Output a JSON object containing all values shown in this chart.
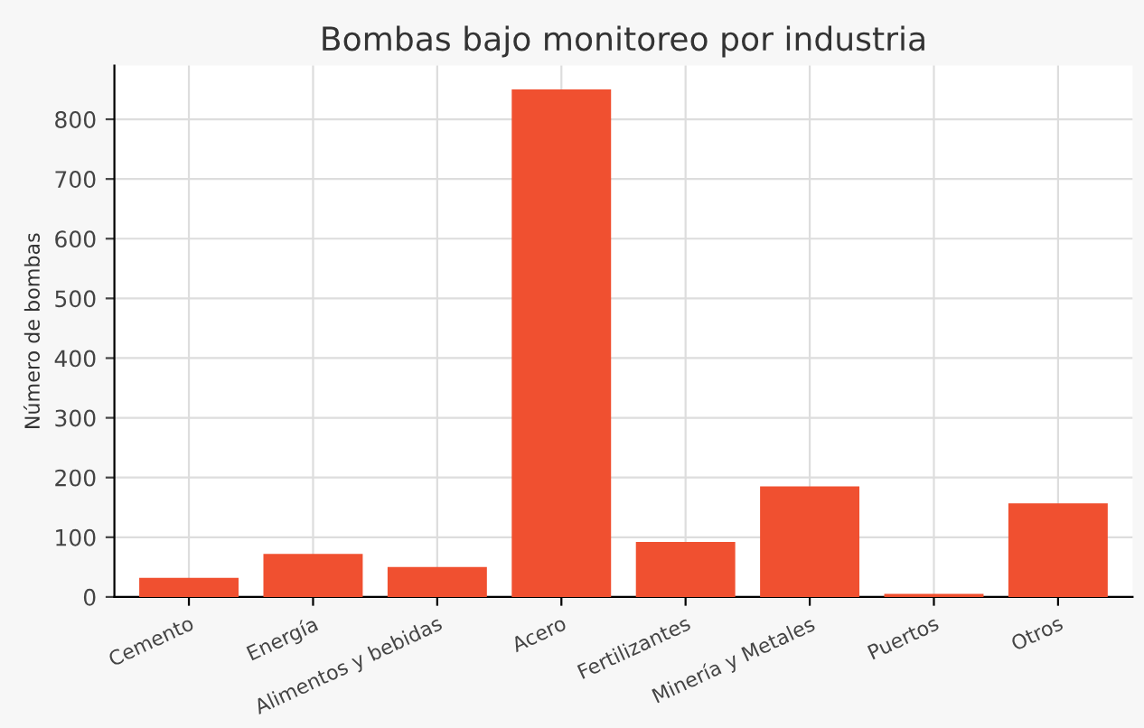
{
  "chart_data": {
    "type": "bar",
    "title": "Bombas bajo monitoreo por industria",
    "ylabel": "Número de bombas",
    "categories": [
      "Cemento",
      "Energía",
      "Alimentos y bebidas",
      "Acero",
      "Fertilizantes",
      "Minería y Metales",
      "Puertos",
      "Otros"
    ],
    "values": [
      32,
      72,
      50,
      850,
      92,
      185,
      5,
      157
    ],
    "color": "#f05030",
    "ylim": [
      0,
      890
    ],
    "yticks": [
      0,
      100,
      200,
      300,
      400,
      500,
      600,
      700,
      800
    ],
    "grid": true
  }
}
